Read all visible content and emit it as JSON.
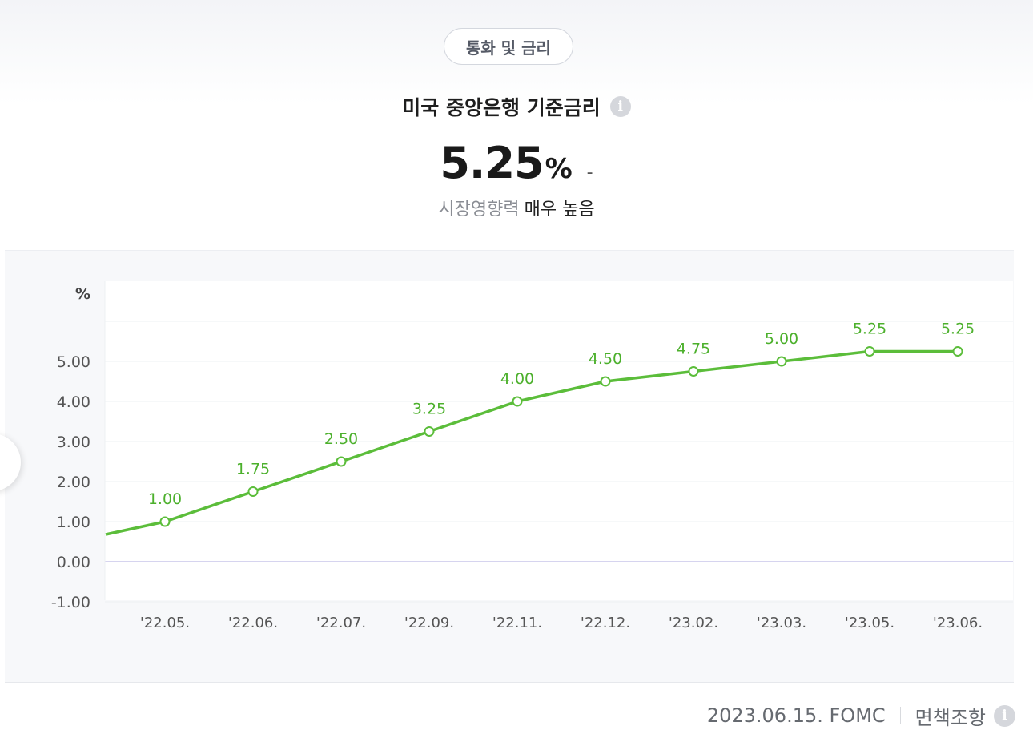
{
  "category": "통화 및 금리",
  "title": "미국 중앙은행 기준금리",
  "current": {
    "value": "5.25",
    "unit": "%",
    "change": "-"
  },
  "impact": {
    "label": "시장영향력",
    "level": "매우 높음"
  },
  "footer": {
    "date_source": "2023.06.15. FOMC",
    "disclaimer": "면책조항"
  },
  "colors": {
    "line": "#5bbd3a",
    "label": "#4cb02c",
    "zero_line": "#c9c6ea"
  },
  "chart_data": {
    "type": "line",
    "title": "",
    "xlabel": "",
    "ylabel": "%",
    "ylim": [
      -1.0,
      7.0
    ],
    "y_ticks": [
      "-1.00",
      "0.00",
      "1.00",
      "2.00",
      "3.00",
      "4.00",
      "5.00"
    ],
    "categories": [
      "'22.05.",
      "'22.06.",
      "'22.07.",
      "'22.09.",
      "'22.11.",
      "'22.12.",
      "'23.02.",
      "'23.03.",
      "'23.05.",
      "'23.06."
    ],
    "values": [
      1.0,
      1.75,
      2.5,
      3.25,
      4.0,
      4.5,
      4.75,
      5.0,
      5.25,
      5.25
    ],
    "labels": [
      "1.00",
      "1.75",
      "2.50",
      "3.25",
      "4.00",
      "4.50",
      "4.75",
      "5.00",
      "5.25",
      "5.25"
    ],
    "lead_in_value": 0.68,
    "grid": true,
    "legend": "none"
  }
}
